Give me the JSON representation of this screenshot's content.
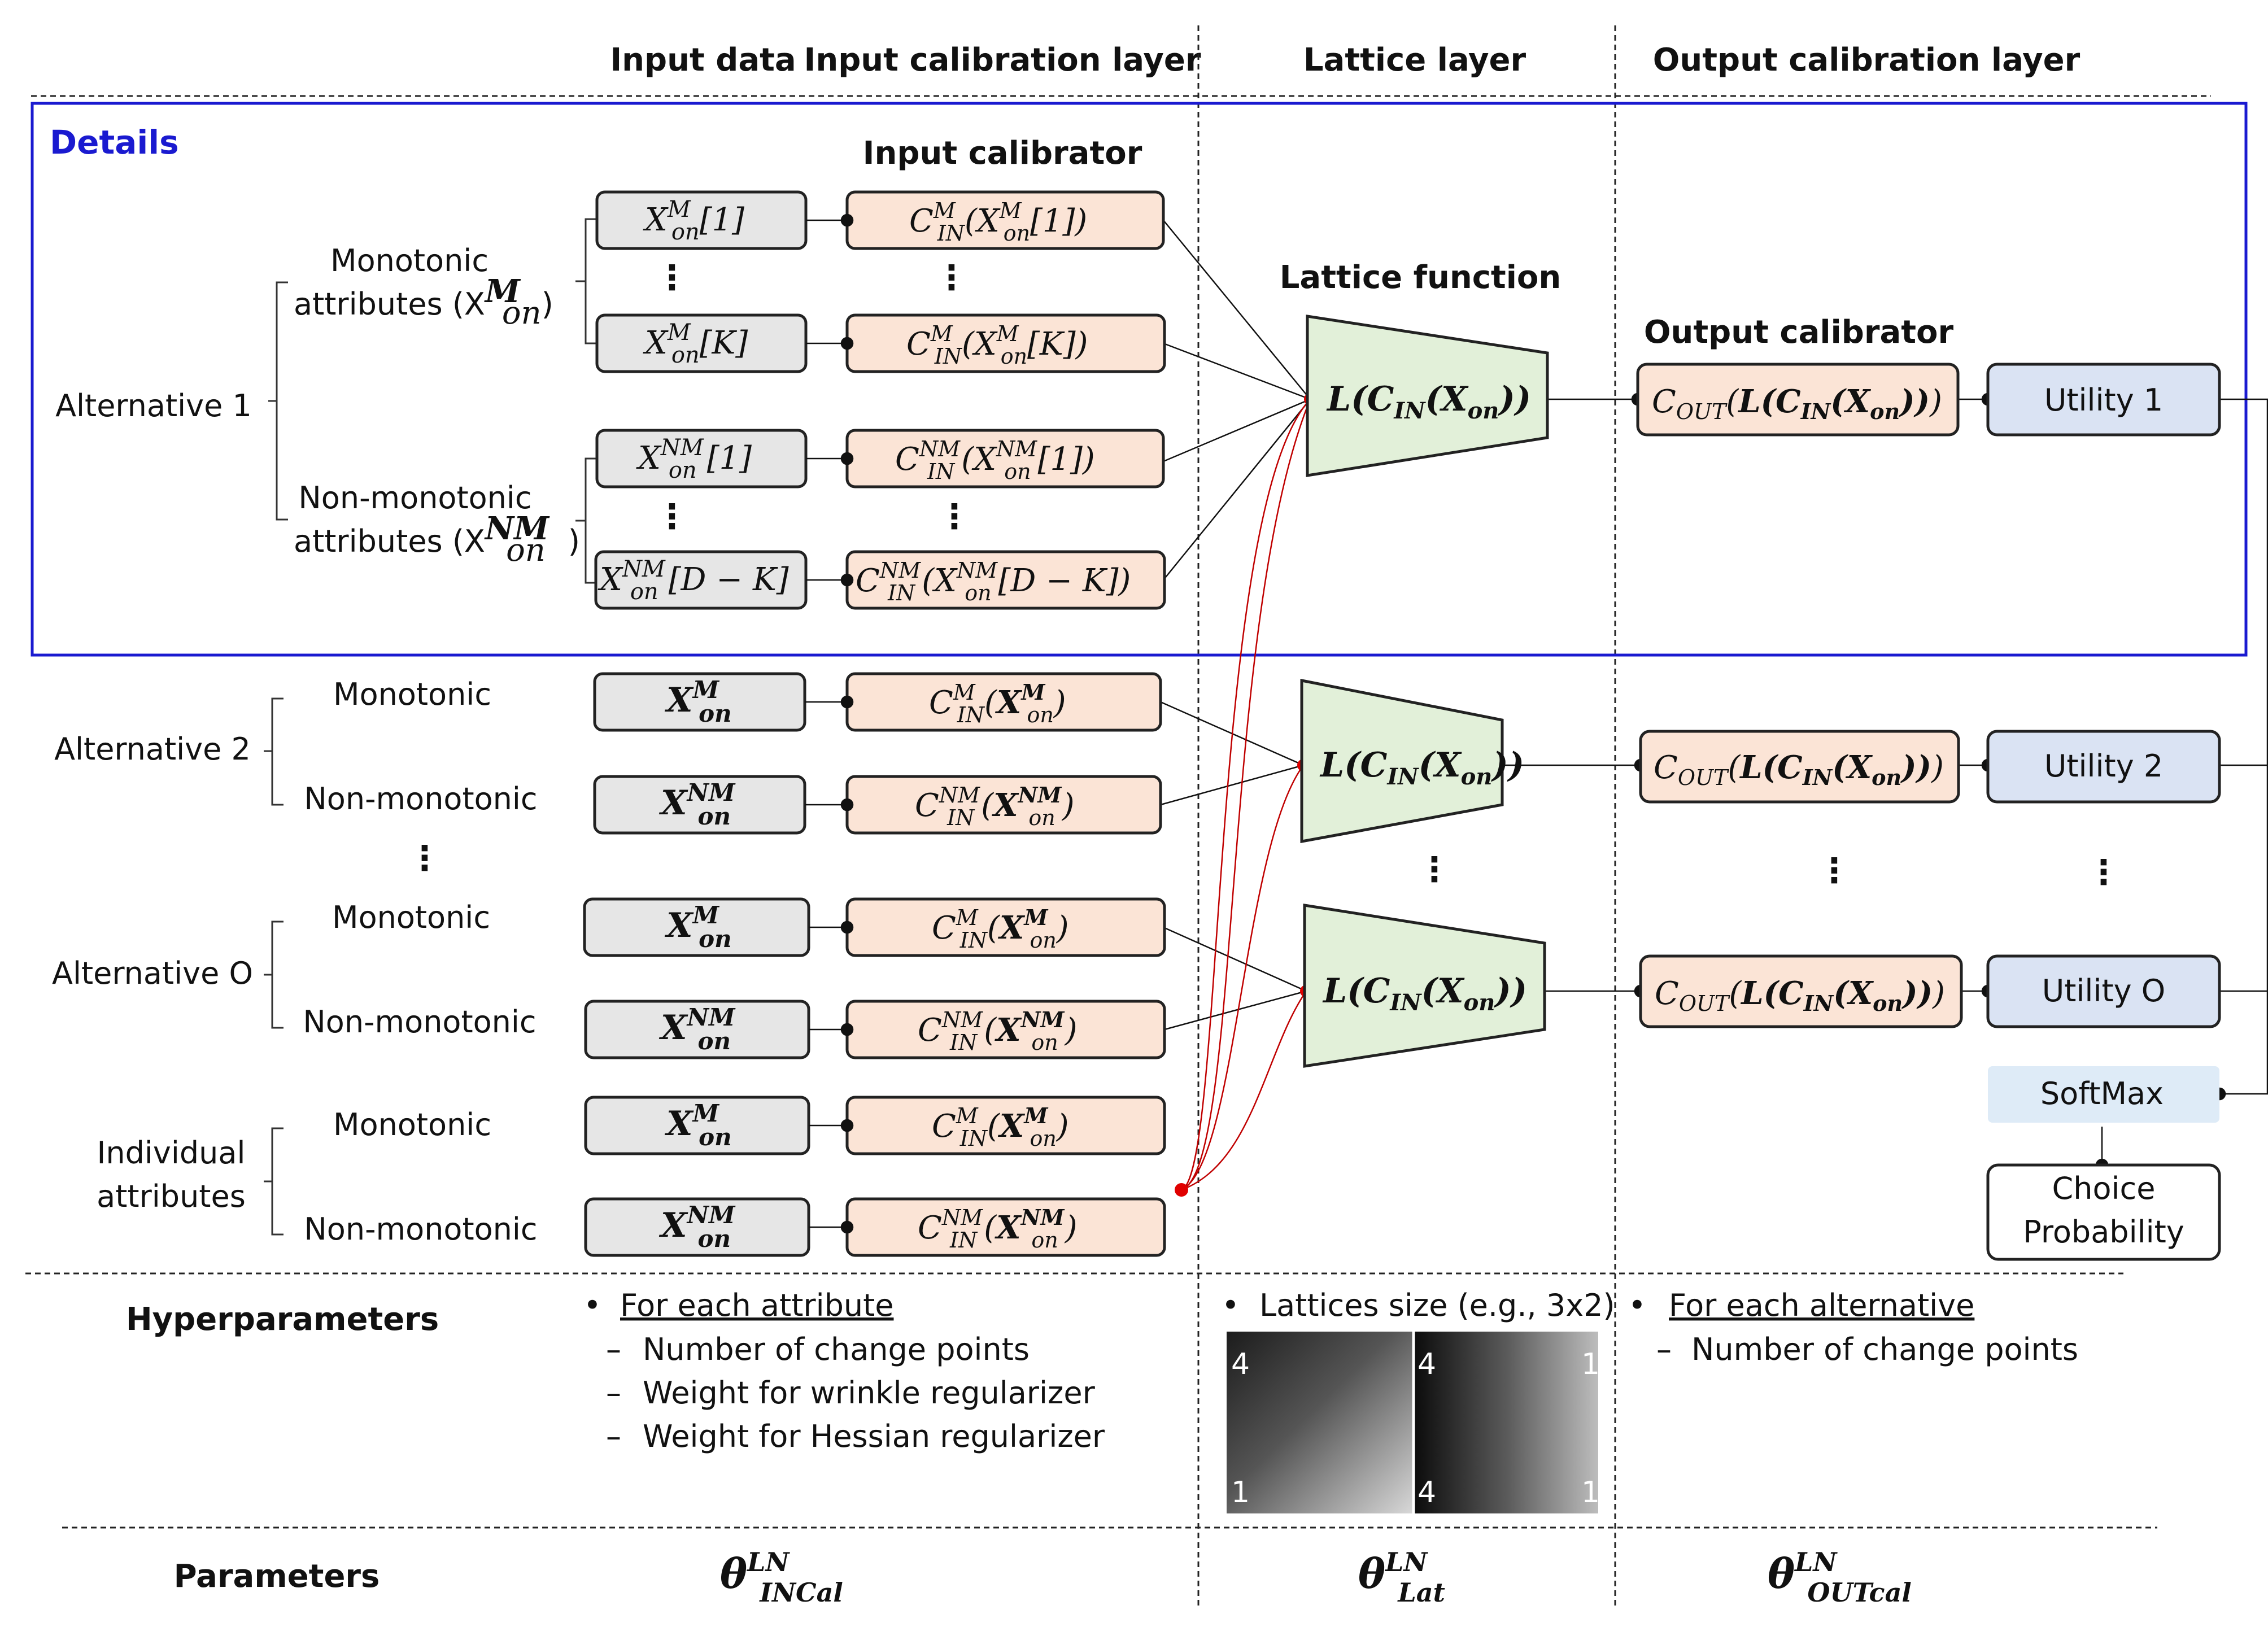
{
  "columns": {
    "input_data": "Input data",
    "input_cal": "Input calibration layer",
    "lattice": "Lattice layer",
    "output_cal": "Output calibration layer"
  },
  "details_label": "Details",
  "input_calibrator_label": "Input calibrator",
  "lattice_function_label": "Lattice function",
  "output_calibrator_label": "Output calibrator",
  "alternatives": {
    "alt1": "Alternative 1",
    "alt1_mono": [
      "Monotonic",
      "attributes (X",
      ")"
    ],
    "alt1_nonmono": [
      "Non-monotonic",
      "attributes (X",
      ")"
    ],
    "alt2": "Alternative 2",
    "altO": "Alternative O",
    "individual": [
      "Individual",
      "attributes"
    ],
    "monotonic": "Monotonic",
    "nonmonotonic": "Non-monotonic"
  },
  "math": {
    "x_m_1": "X",
    "x_m_k": "X",
    "x_nm_1": "X",
    "x_nm_dk": "X",
    "idx1": "[1]",
    "idxK": "[K]",
    "idxDK": "[D − K]",
    "c_in": "C",
    "sub_on": "on",
    "sub_in": "IN",
    "sup_m": "M",
    "sup_nm": "NM",
    "lattice_fn": "L(C",
    "lattice_fn_tail": "(X",
    "lattice_close": "))",
    "c_out": "C",
    "sub_out": "OUT"
  },
  "utilities": [
    "Utility 1",
    "Utility 2",
    "Utility O"
  ],
  "softmax": "SoftMax",
  "choice": [
    "Choice",
    "Probability"
  ],
  "hyperparameters": {
    "label": "Hyperparameters",
    "input_heading": "For each attribute",
    "input_items": [
      "Number of change points",
      "Weight for wrinkle regularizer",
      "Weight for Hessian regularizer"
    ],
    "lattice_item": "Lattices size (e.g., 3x2)",
    "output_heading": "For each alternative",
    "output_items": [
      "Number of change points"
    ]
  },
  "grid_numbers": [
    "4",
    "1",
    "4",
    "1",
    "4",
    "1"
  ],
  "parameters": {
    "label": "Parameters",
    "theta": "θ",
    "sup": "LN",
    "sub_in": "INCal",
    "sub_lat": "Lat",
    "sub_out": "OUTcal"
  },
  "colors": {
    "input_box": "#e6e6e6",
    "calib_box": "#fbe4d6",
    "lattice_box": "#e2f0d9",
    "utility_box": "#dae3f3",
    "softmax_box": "#deebf7",
    "details_border": "#1a1ad0",
    "red_connector": "#c00000"
  }
}
